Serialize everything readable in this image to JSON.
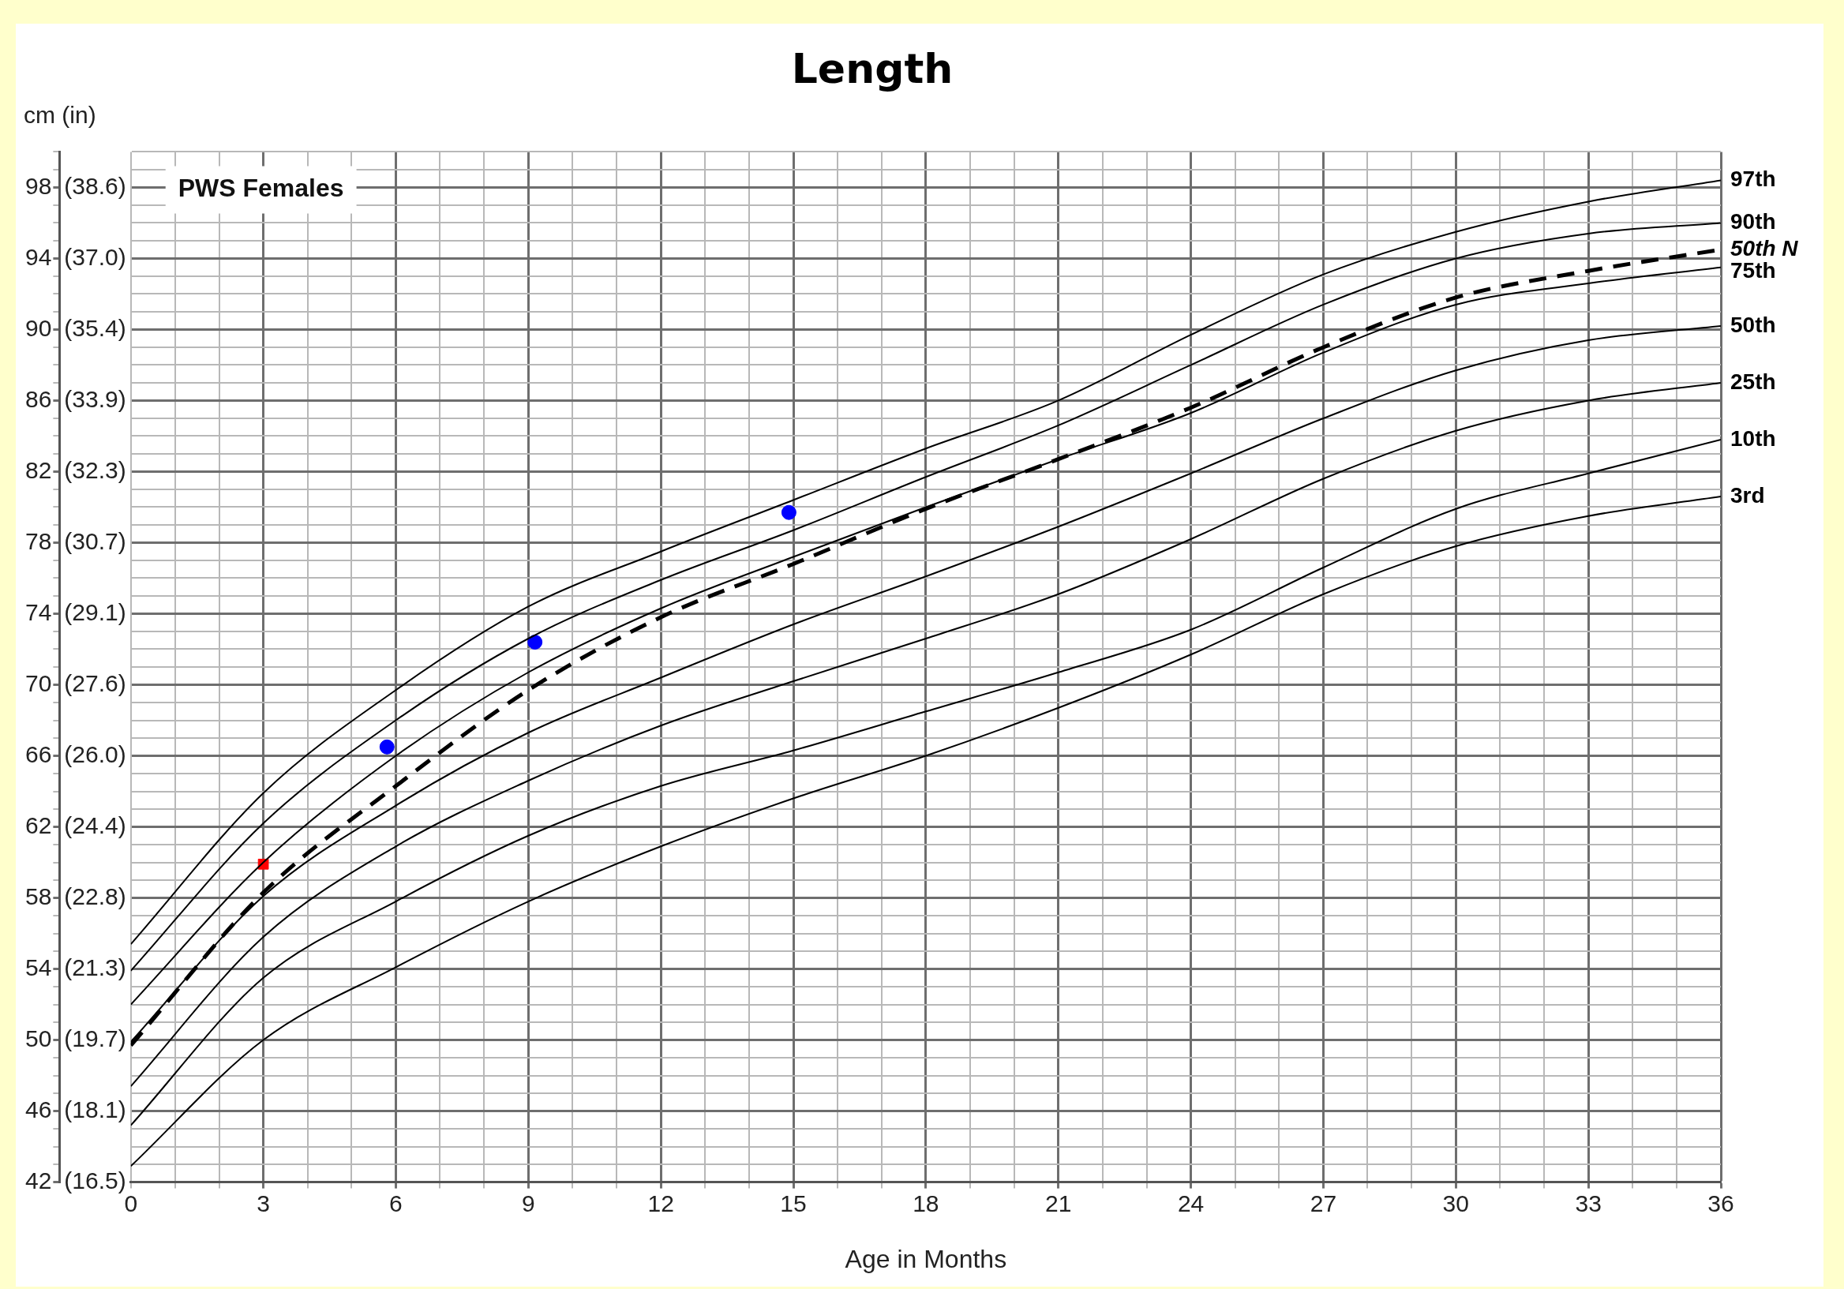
{
  "chart_data": {
    "type": "line",
    "title": "Length",
    "xlabel": "Age in Months",
    "ylabel": "cm (in)",
    "annotations": [
      "PWS Females"
    ],
    "x": [
      0,
      3,
      6,
      9,
      12,
      15,
      18,
      21,
      24,
      27,
      30,
      33,
      36
    ],
    "xlim": [
      0,
      36
    ],
    "ylim": [
      42,
      100
    ],
    "xticks": [
      0,
      {
        "value": 1,
        "label": null
      },
      {
        "value": 2,
        "label": null
      },
      3,
      {
        "value": 4,
        "label": null
      },
      {
        "value": 5,
        "label": null
      },
      6,
      {
        "value": 7,
        "label": null
      },
      {
        "value": 8,
        "label": null
      },
      9,
      {
        "value": 10,
        "label": null
      },
      {
        "value": 11,
        "label": null
      },
      12,
      {
        "value": 13,
        "label": null
      },
      {
        "value": 14,
        "label": null
      },
      15,
      {
        "value": 16,
        "label": null
      },
      {
        "value": 17,
        "label": null
      },
      18,
      {
        "value": 19,
        "label": null
      },
      {
        "value": 20,
        "label": null
      },
      21,
      {
        "value": 22,
        "label": null
      },
      {
        "value": 23,
        "label": null
      },
      24,
      {
        "value": 25,
        "label": null
      },
      {
        "value": 26,
        "label": null
      },
      27,
      {
        "value": 28,
        "label": null
      },
      {
        "value": 29,
        "label": null
      },
      30,
      {
        "value": 31,
        "label": null
      },
      {
        "value": 32,
        "label": null
      },
      33,
      {
        "value": 34,
        "label": null
      },
      {
        "value": 35,
        "label": null
      },
      36
    ],
    "y2lim": [
      16.535,
      39.37
    ],
    "y2ticks": [
      {
        "value": 16.535,
        "label": "(16.5)"
      },
      {
        "value": 18.11,
        "label": "(18.1)"
      },
      {
        "value": 19.685,
        "label": "(19.7)"
      },
      {
        "value": 21.26,
        "label": "(21.3)"
      },
      {
        "value": 22.835,
        "label": "(22.8)"
      },
      {
        "value": 24.409,
        "label": "(24.4)"
      },
      {
        "value": 25.984,
        "label": "(26.0)"
      },
      {
        "value": 27.559,
        "label": "(27.6)"
      },
      {
        "value": 29.134,
        "label": "(29.1)"
      },
      {
        "value": 30.709,
        "label": "(30.7)"
      },
      {
        "value": 32.283,
        "label": "(32.3)"
      },
      {
        "value": 33.858,
        "label": "(33.9)"
      },
      {
        "value": 35.433,
        "label": "(35.4)"
      },
      {
        "value": 37.008,
        "label": "(37.0)"
      },
      {
        "value": 38.583,
        "label": "(38.6)"
      }
    ],
    "yticks": [
      42,
      {
        "value": 43,
        "label": null
      },
      {
        "value": 44,
        "label": null
      },
      {
        "value": 45,
        "label": null
      },
      46,
      {
        "value": 47,
        "label": null
      },
      {
        "value": 48,
        "label": null
      },
      {
        "value": 49,
        "label": null
      },
      50,
      {
        "value": 51,
        "label": null
      },
      {
        "value": 52,
        "label": null
      },
      {
        "value": 53,
        "label": null
      },
      54,
      {
        "value": 55,
        "label": null
      },
      {
        "value": 56,
        "label": null
      },
      {
        "value": 57,
        "label": null
      },
      58,
      {
        "value": 59,
        "label": null
      },
      {
        "value": 60,
        "label": null
      },
      {
        "value": 61,
        "label": null
      },
      62,
      {
        "value": 63,
        "label": null
      },
      {
        "value": 64,
        "label": null
      },
      {
        "value": 65,
        "label": null
      },
      66,
      {
        "value": 67,
        "label": null
      },
      {
        "value": 68,
        "label": null
      },
      {
        "value": 69,
        "label": null
      },
      70,
      {
        "value": 71,
        "label": null
      },
      {
        "value": 72,
        "label": null
      },
      {
        "value": 73,
        "label": null
      },
      74,
      {
        "value": 75,
        "label": null
      },
      {
        "value": 76,
        "label": null
      },
      {
        "value": 77,
        "label": null
      },
      78,
      {
        "value": 79,
        "label": null
      },
      {
        "value": 80,
        "label": null
      },
      {
        "value": 81,
        "label": null
      },
      82,
      {
        "value": 83,
        "label": null
      },
      {
        "value": 84,
        "label": null
      },
      {
        "value": 85,
        "label": null
      },
      86,
      {
        "value": 87,
        "label": null
      },
      {
        "value": 88,
        "label": null
      },
      {
        "value": 89,
        "label": null
      },
      90,
      {
        "value": 91,
        "label": null
      },
      {
        "value": 92,
        "label": null
      },
      {
        "value": 93,
        "label": null
      },
      94,
      {
        "value": 95,
        "label": null
      },
      {
        "value": 96,
        "label": null
      },
      {
        "value": 97,
        "label": null
      },
      98,
      {
        "value": 99,
        "label": null
      },
      {
        "value": 100,
        "label": null
      }
    ],
    "grid": true,
    "legend": false,
    "marker": "none",
    "series": [
      {
        "name": "97th",
        "color": "#000000",
        "line_style": "solid",
        "values": [
          55.4,
          63.9,
          69.7,
          74.4,
          77.5,
          80.4,
          83.3,
          86.0,
          89.7,
          93.1,
          95.5,
          97.2,
          98.4
        ]
      },
      {
        "name": "90th",
        "color": "#000000",
        "line_style": "solid",
        "values": [
          53.9,
          62.2,
          68.0,
          72.6,
          75.9,
          78.7,
          81.7,
          84.6,
          88.0,
          91.4,
          94.0,
          95.4,
          96.0
        ]
      },
      {
        "name": "50th N",
        "color": "#000000",
        "line_style": "dashed",
        "values": [
          49.7,
          58.3,
          64.3,
          69.7,
          73.8,
          76.8,
          79.9,
          82.7,
          85.6,
          89.0,
          91.8,
          93.3,
          94.5
        ]
      },
      {
        "name": "75th",
        "color": "#000000",
        "line_style": "solid",
        "values": [
          52.0,
          60.0,
          66.0,
          70.7,
          74.3,
          77.2,
          80.0,
          82.7,
          85.3,
          88.7,
          91.4,
          92.6,
          93.5
        ]
      },
      {
        "name": "50th",
        "color": "#000000",
        "line_style": "solid",
        "values": [
          49.9,
          58.1,
          63.2,
          67.3,
          70.4,
          73.4,
          76.1,
          78.9,
          81.9,
          85.0,
          87.7,
          89.4,
          90.2
        ]
      },
      {
        "name": "25th",
        "color": "#000000",
        "line_style": "solid",
        "values": [
          47.4,
          55.8,
          60.9,
          64.6,
          67.7,
          70.2,
          72.6,
          75.1,
          78.2,
          81.6,
          84.3,
          86.0,
          87.0
        ]
      },
      {
        "name": "10th",
        "color": "#000000",
        "line_style": "solid",
        "values": [
          45.2,
          53.5,
          57.8,
          61.5,
          64.3,
          66.3,
          68.5,
          70.7,
          73.1,
          76.6,
          79.9,
          81.9,
          83.8
        ]
      },
      {
        "name": "3rd",
        "color": "#000000",
        "line_style": "solid",
        "values": [
          42.9,
          50.0,
          54.1,
          57.8,
          60.9,
          63.6,
          66.0,
          68.7,
          71.7,
          75.1,
          77.8,
          79.5,
          80.6
        ]
      },
      {
        "type": "scatter",
        "color": "#ff0000",
        "marker": "square",
        "x": [
          3
        ],
        "values": [
          59.9
        ]
      },
      {
        "type": "scatter",
        "color": "#0000ff",
        "marker": "circle",
        "x": [
          5.8,
          9.15,
          14.9
        ],
        "values": [
          66.5,
          72.4,
          79.7
        ]
      }
    ]
  }
}
